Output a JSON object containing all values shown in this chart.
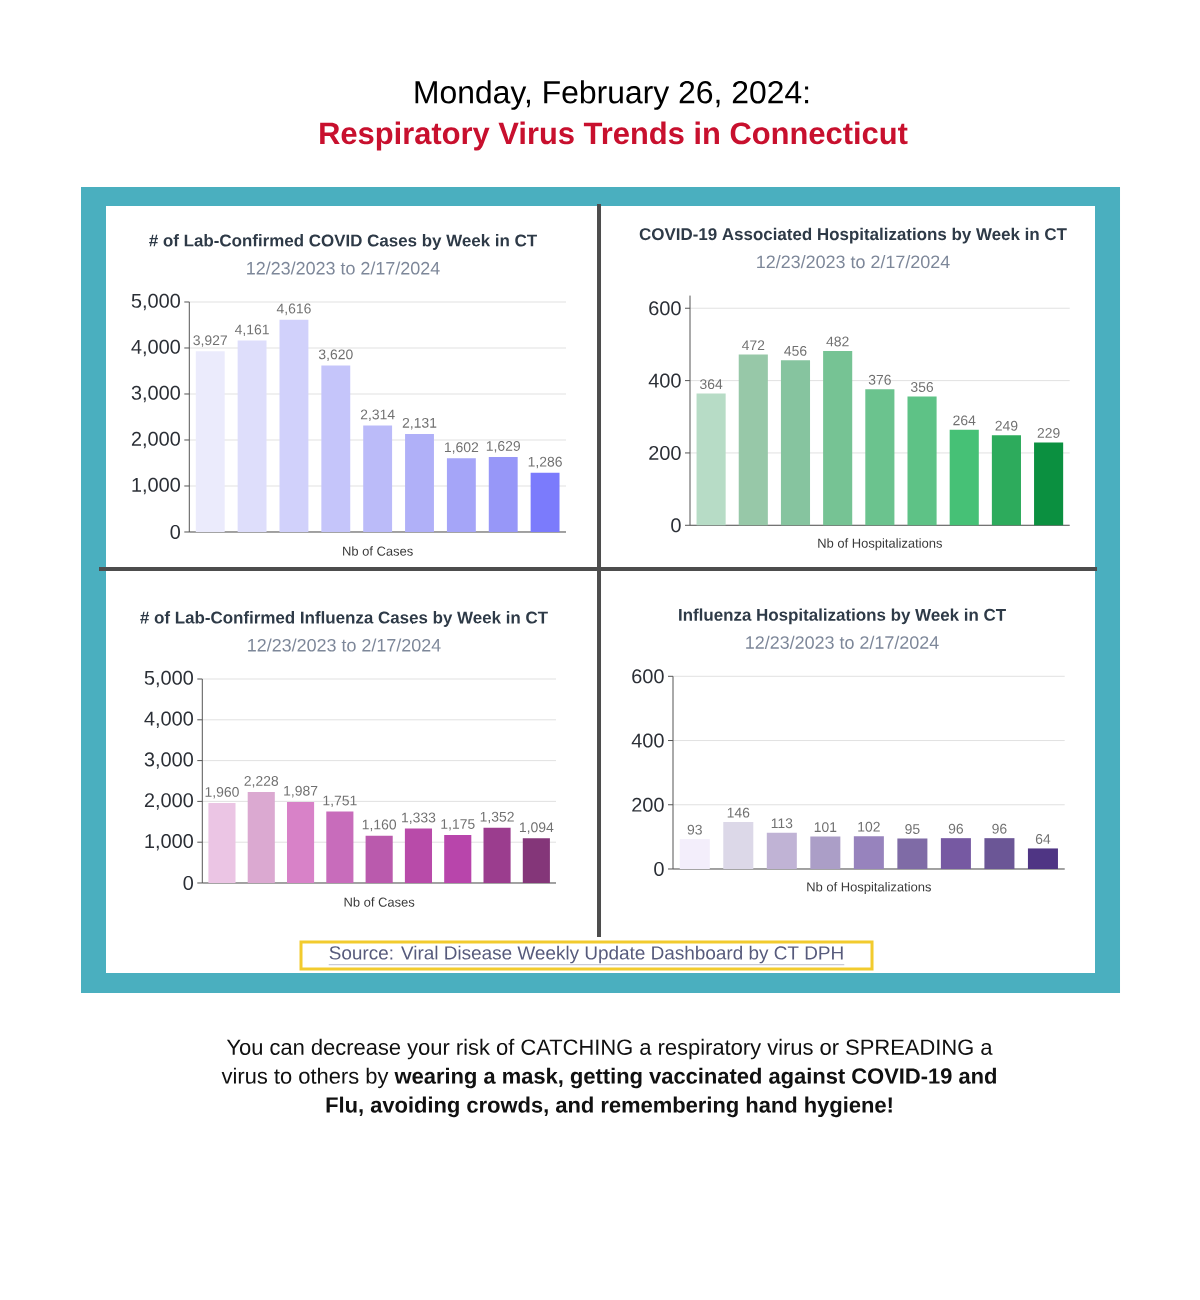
{
  "chart_data": [
    {
      "type": "other",
      "title": "Monday, February 26, 2024:",
      "subtitle": "Respiratory Virus Trends in Connecticut"
    },
    {
      "type": "bar",
      "title": "# of Lab-Confirmed COVID Cases by Week in CT",
      "subtitle": "12/23/2023 to 2/17/2024",
      "xlabel": "Nb of Cases",
      "categories": [
        null,
        null,
        null,
        null,
        null,
        null,
        null,
        null,
        null
      ],
      "values": [
        3927,
        4161,
        4616,
        3620,
        2314,
        2131,
        1602,
        1629,
        1286
      ],
      "value_labels": [
        "3,927",
        "4,161",
        "4,616",
        "3,620",
        "2,314",
        "2,131",
        "1,602",
        "1,629",
        "1,286"
      ],
      "colors": [
        "#ebebfc",
        "#dedefb",
        "#d1d1fb",
        "#c5c5fa",
        "#bbbbf9",
        "#b0b0f8",
        "#a5a5f8",
        "#9797f8",
        "#7b7bfc"
      ],
      "ylim": [
        0,
        5000
      ],
      "yticks": [
        0,
        {
          "value": 1000,
          "label": "1,000"
        },
        {
          "value": 2000,
          "label": "2,000"
        },
        {
          "value": 3000,
          "label": "3,000"
        },
        {
          "value": 4000,
          "label": "4,000"
        },
        {
          "value": 5000,
          "label": "5,000"
        }
      ],
      "grid": "y"
    },
    {
      "type": "bar",
      "title": "COVID-19 Associated Hospitalizations by Week in CT",
      "subtitle": "12/23/2023 to 2/17/2024",
      "xlabel": "Nb of Hospitalizations",
      "categories": [
        null,
        null,
        null,
        null,
        null,
        null,
        null,
        null,
        null
      ],
      "values": [
        364,
        472,
        456,
        482,
        376,
        356,
        264,
        249,
        229
      ],
      "data_labels": true,
      "colors": [
        "#b7dcc6",
        "#97c8a8",
        "#86c49f",
        "#76c394",
        "#6bc38e",
        "#5ec286",
        "#46c176",
        "#2dab5c",
        "#0b9040"
      ],
      "ylim": [
        0,
        635
      ],
      "yticks": [
        0,
        200,
        400,
        600
      ],
      "grid": "y"
    },
    {
      "type": "bar",
      "title": "# of Lab-Confirmed Influenza Cases by Week in CT",
      "subtitle": "12/23/2023 to 2/17/2024",
      "xlabel": "Nb of Cases",
      "categories": [
        null,
        null,
        null,
        null,
        null,
        null,
        null,
        null,
        null
      ],
      "values": [
        1960,
        2228,
        1987,
        1751,
        1160,
        1333,
        1175,
        1352,
        1094
      ],
      "value_labels": [
        "1,960",
        "2,228",
        "1,987",
        "1,751",
        "1,160",
        "1,333",
        "1,175",
        "1,352",
        "1,094"
      ],
      "colors": [
        "#ebc5e4",
        "#dba9d1",
        "#d882c8",
        "#c86cbb",
        "#ba5aad",
        "#b84ba9",
        "#b845ab",
        "#9b3d8e",
        "#843679"
      ],
      "ylim": [
        0,
        5000
      ],
      "yticks": [
        0,
        {
          "value": 1000,
          "label": "1,000"
        },
        {
          "value": 2000,
          "label": "2,000"
        },
        {
          "value": 3000,
          "label": "3,000"
        },
        {
          "value": 4000,
          "label": "4,000"
        },
        {
          "value": 5000,
          "label": "5,000"
        }
      ],
      "grid": "y"
    },
    {
      "type": "bar",
      "title": "Influenza Hospitalizations by Week in CT",
      "subtitle": "12/23/2023 to 2/17/2024",
      "xlabel": "Nb of Hospitalizations",
      "categories": [
        null,
        null,
        null,
        null,
        null,
        null,
        null,
        null,
        null
      ],
      "values": [
        93,
        146,
        113,
        101,
        102,
        95,
        96,
        96,
        64
      ],
      "data_labels": true,
      "colors": [
        "#f3eefb",
        "#dcd8e8",
        "#c0b3d5",
        "#ab9ec7",
        "#9783bd",
        "#7f6ba6",
        "#7659a2",
        "#6b5696",
        "#4f3584"
      ],
      "ylim": [
        0,
        600
      ],
      "yticks": [
        0,
        200,
        400,
        600
      ],
      "grid": "y"
    },
    {
      "type": "other",
      "annotations": [
        "Source: Viral Disease Weekly Update Dashboard by CT DPH",
        "You can decrease your risk of CATCHING a respiratory virus or SPREADING a virus to others by **wearing a mask, getting vaccinated against COVID-19 and Flu, avoiding crowds, and remembering hand hygiene!**"
      ]
    }
  ]
}
